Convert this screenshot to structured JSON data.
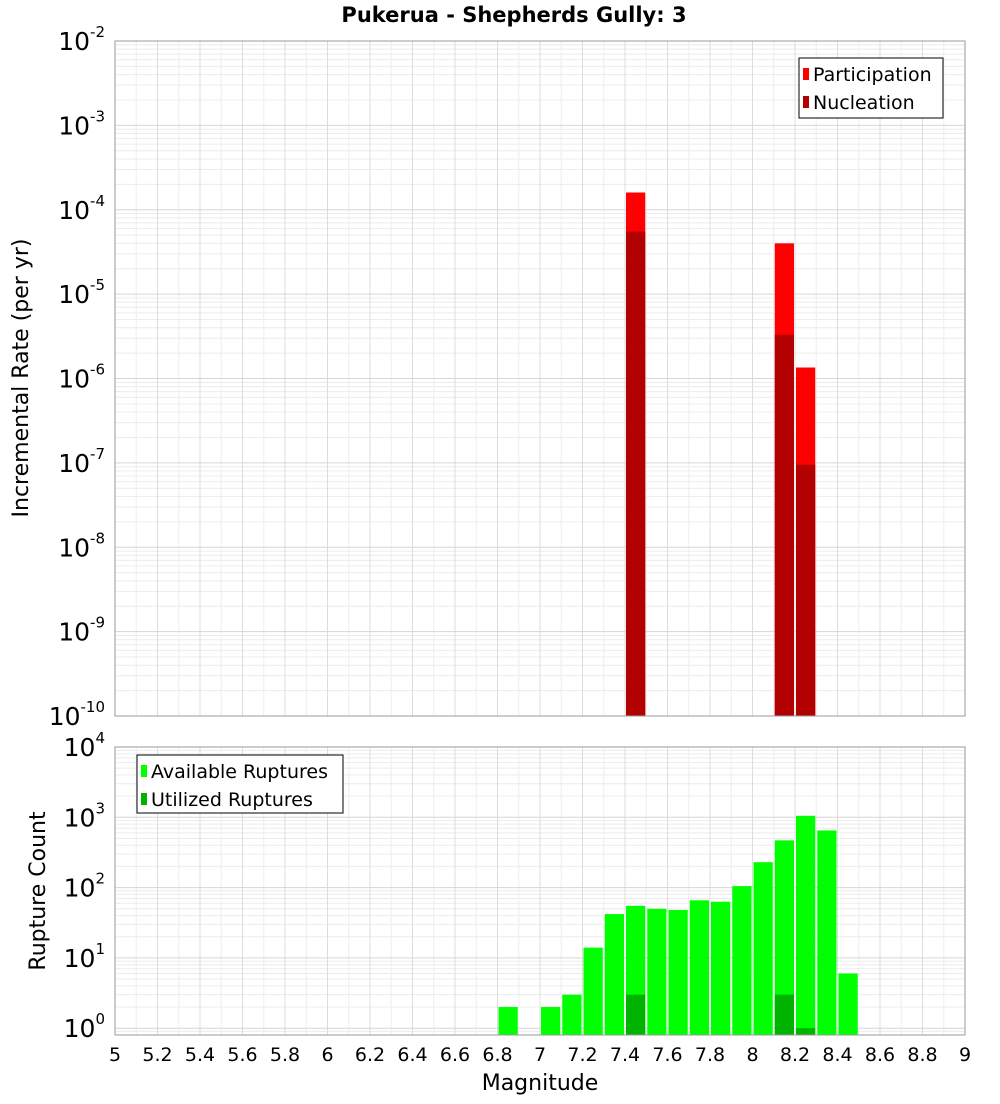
{
  "title": "Pukerua - Shepherds Gully: 3",
  "xlabel": "Magnitude",
  "x_ticks": [
    "5",
    "5.2",
    "5.4",
    "5.6",
    "5.8",
    "6",
    "6.2",
    "6.4",
    "6.6",
    "6.8",
    "7",
    "7.2",
    "7.4",
    "7.6",
    "7.8",
    "8",
    "8.2",
    "8.4",
    "8.6",
    "8.8",
    "9"
  ],
  "chart_data": [
    {
      "type": "bar",
      "ylabel": "Incremental Rate (per yr)",
      "yscale": "log",
      "ylim": [
        1e-10,
        0.01
      ],
      "xlim": [
        5,
        9
      ],
      "bin_width": 0.1,
      "y_ticks": [
        {
          "base": "10",
          "exp": "-10",
          "value": 1e-10
        },
        {
          "base": "10",
          "exp": "-9",
          "value": 1e-09
        },
        {
          "base": "10",
          "exp": "-8",
          "value": 1e-08
        },
        {
          "base": "10",
          "exp": "-7",
          "value": 1e-07
        },
        {
          "base": "10",
          "exp": "-6",
          "value": 1e-06
        },
        {
          "base": "10",
          "exp": "-5",
          "value": 1e-05
        },
        {
          "base": "10",
          "exp": "-4",
          "value": 0.0001
        },
        {
          "base": "10",
          "exp": "-3",
          "value": 0.001
        },
        {
          "base": "10",
          "exp": "-2",
          "value": 0.01
        }
      ],
      "legend_position": "top-right",
      "grid": true,
      "series": [
        {
          "name": "Participation",
          "color": "#ff0000",
          "points": [
            {
              "x": 7.45,
              "y": 0.00016
            },
            {
              "x": 8.15,
              "y": 4e-05
            },
            {
              "x": 8.25,
              "y": 1.35e-06
            }
          ]
        },
        {
          "name": "Nucleation",
          "color": "#b30000",
          "points": [
            {
              "x": 7.45,
              "y": 5.5e-05
            },
            {
              "x": 8.15,
              "y": 3.3e-06
            },
            {
              "x": 8.25,
              "y": 9.5e-08
            }
          ]
        }
      ]
    },
    {
      "type": "bar",
      "ylabel": "Rupture Count",
      "yscale": "log",
      "ylim": [
        0.8,
        10000.0
      ],
      "xlim": [
        5,
        9
      ],
      "bin_width": 0.1,
      "y_ticks": [
        {
          "base": "10",
          "exp": "0",
          "value": 1
        },
        {
          "base": "10",
          "exp": "1",
          "value": 10
        },
        {
          "base": "10",
          "exp": "2",
          "value": 100
        },
        {
          "base": "10",
          "exp": "3",
          "value": 1000
        },
        {
          "base": "10",
          "exp": "4",
          "value": 10000
        }
      ],
      "legend_position": "top-left",
      "grid": true,
      "series": [
        {
          "name": "Available Ruptures",
          "color": "#00ff00",
          "points": [
            {
              "x": 6.85,
              "y": 2
            },
            {
              "x": 7.05,
              "y": 2
            },
            {
              "x": 7.15,
              "y": 3
            },
            {
              "x": 7.25,
              "y": 14
            },
            {
              "x": 7.35,
              "y": 42
            },
            {
              "x": 7.45,
              "y": 55
            },
            {
              "x": 7.55,
              "y": 50
            },
            {
              "x": 7.65,
              "y": 48
            },
            {
              "x": 7.75,
              "y": 66
            },
            {
              "x": 7.85,
              "y": 63
            },
            {
              "x": 7.95,
              "y": 105
            },
            {
              "x": 8.05,
              "y": 230
            },
            {
              "x": 8.15,
              "y": 470
            },
            {
              "x": 8.25,
              "y": 1050
            },
            {
              "x": 8.35,
              "y": 650
            },
            {
              "x": 8.45,
              "y": 6
            }
          ]
        },
        {
          "name": "Utilized Ruptures",
          "color": "#00b300",
          "points": [
            {
              "x": 7.45,
              "y": 3
            },
            {
              "x": 8.15,
              "y": 3
            },
            {
              "x": 8.25,
              "y": 1
            }
          ]
        }
      ]
    }
  ]
}
